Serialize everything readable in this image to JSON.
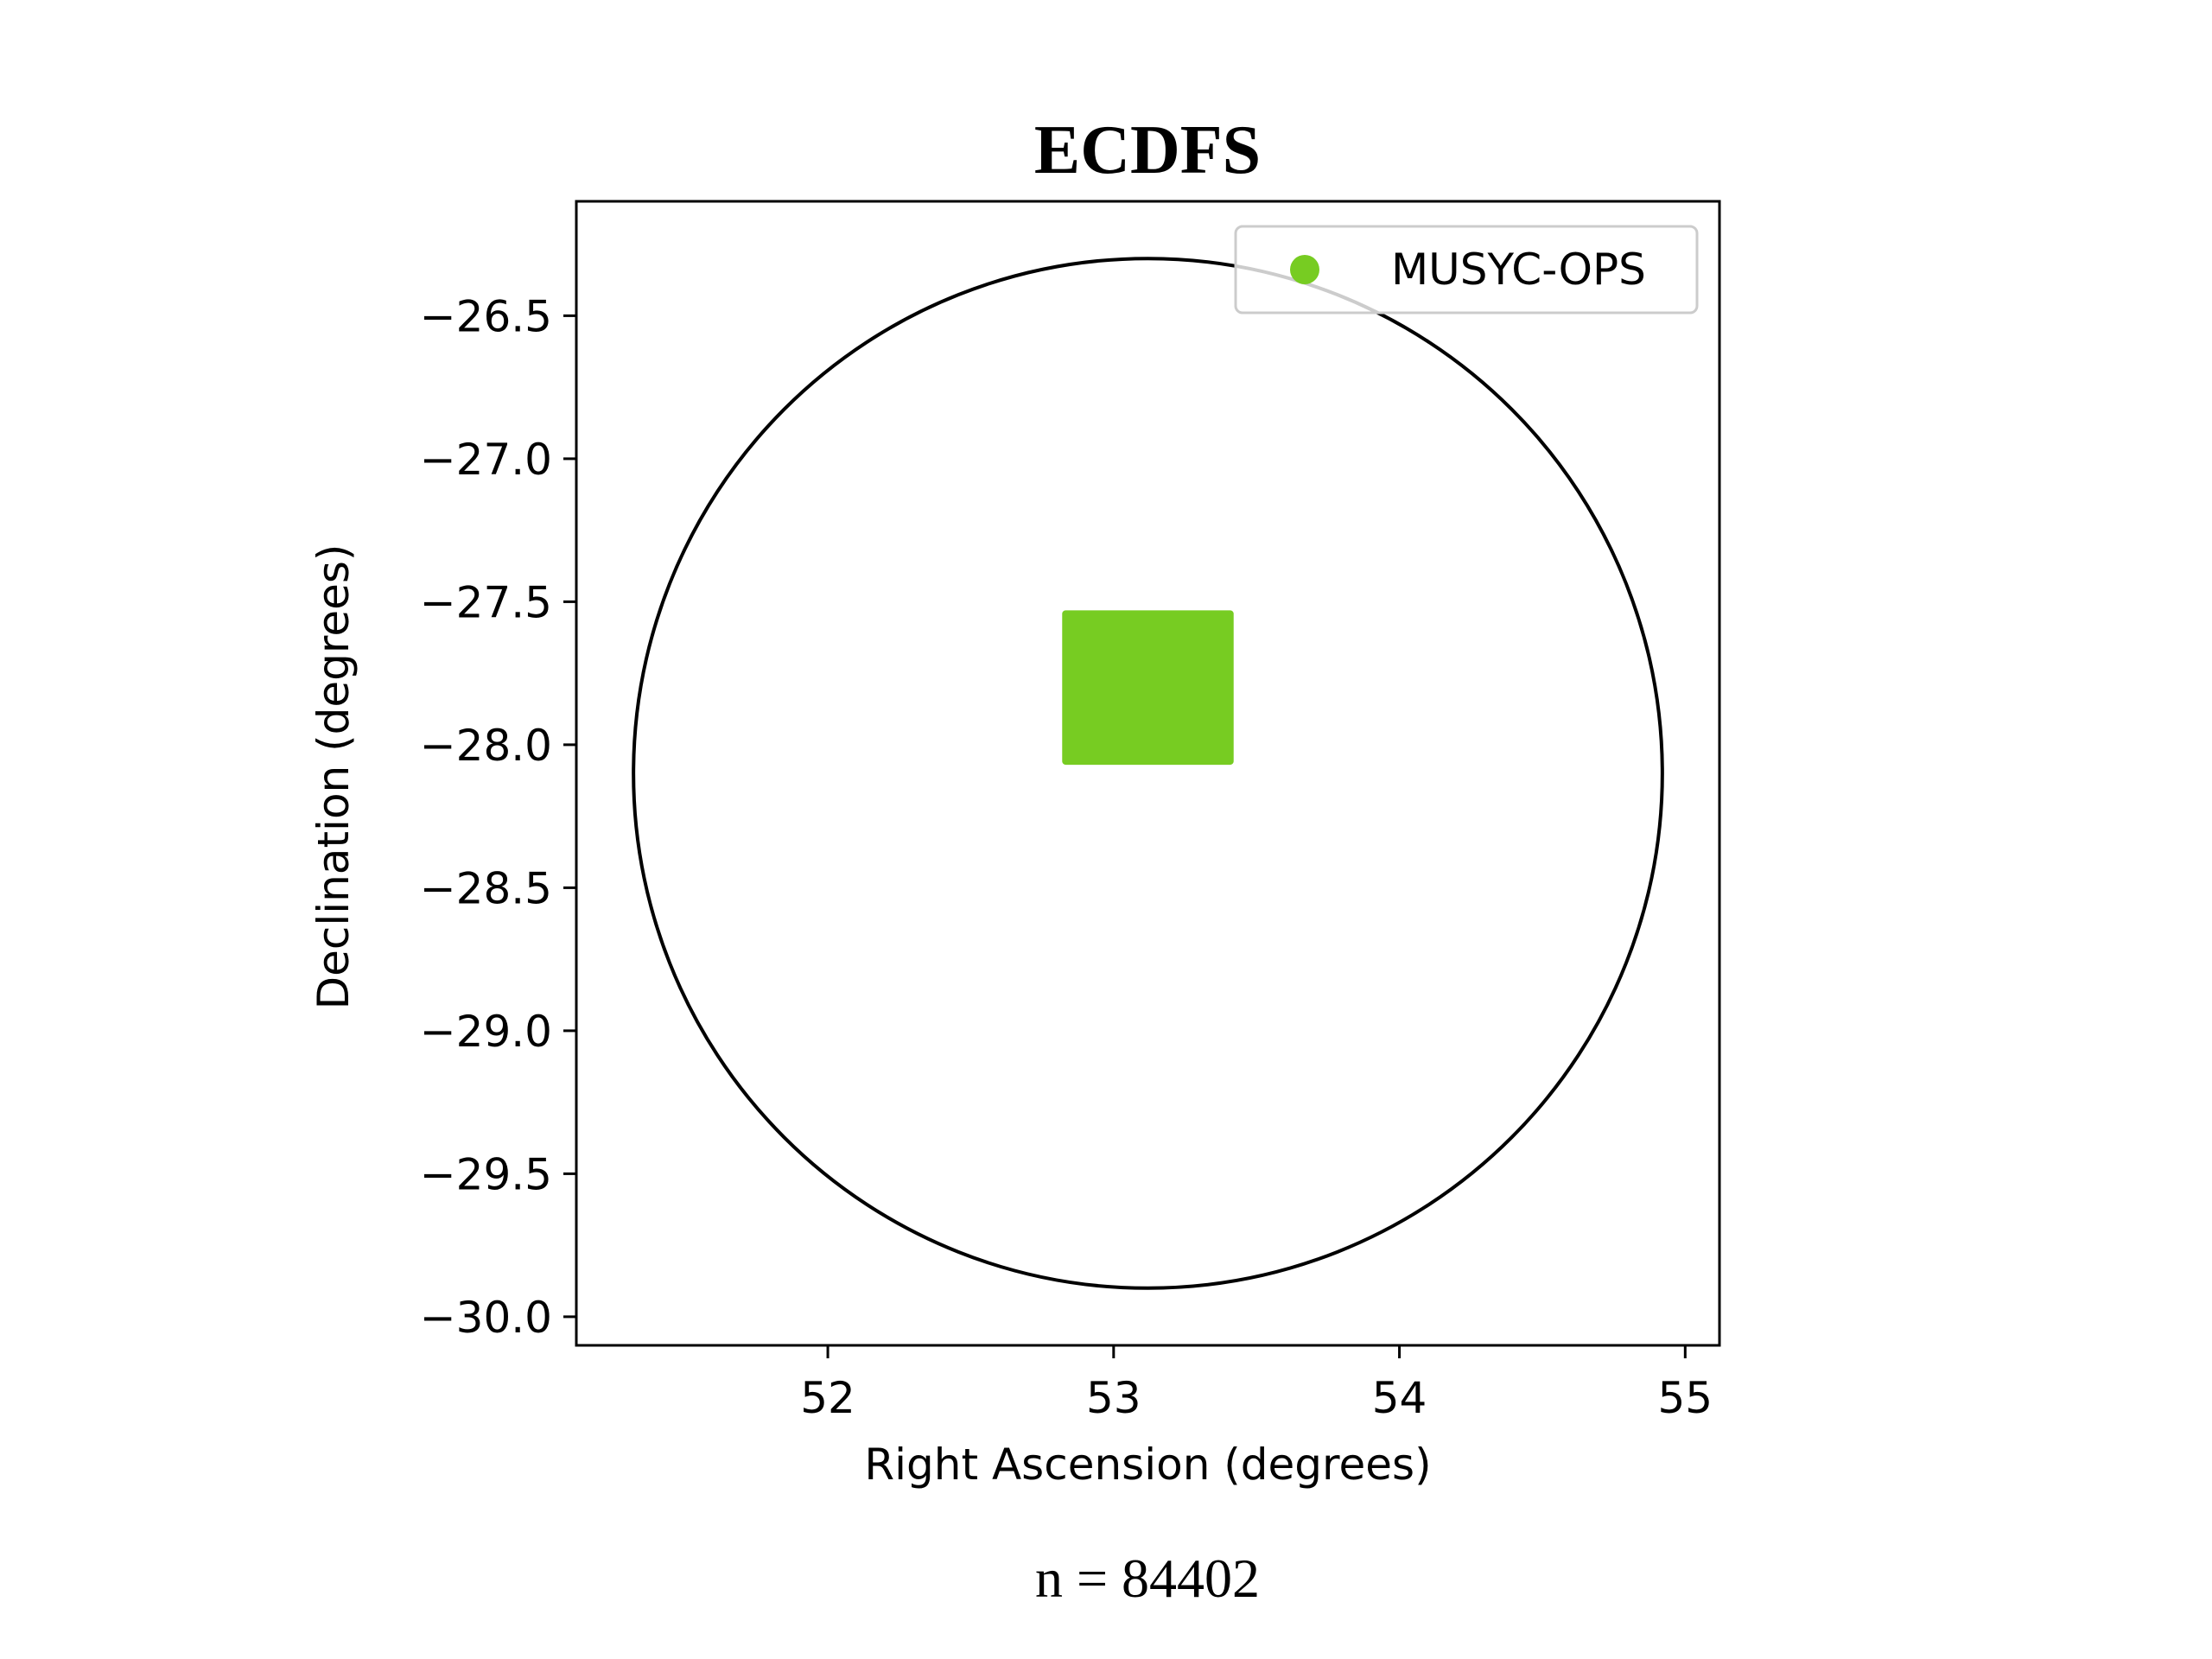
{
  "chart_data": {
    "type": "scatter",
    "title": "ECDFS",
    "xlabel": "Right Ascension (degrees)",
    "ylabel": "Declination (degrees)",
    "xlim": [
      51.12,
      55.12
    ],
    "ylim": [
      -30.1,
      -26.1
    ],
    "x_ticks": [
      52,
      53,
      54,
      55
    ],
    "x_tick_labels": [
      "52",
      "53",
      "54",
      "55"
    ],
    "y_ticks": [
      -26.5,
      -27.0,
      -27.5,
      -28.0,
      -28.5,
      -29.0,
      -29.5,
      -30.0
    ],
    "y_tick_labels": [
      "−26.5",
      "−27.0",
      "−27.5",
      "−28.0",
      "−28.5",
      "−29.0",
      "−29.5",
      "−30.0"
    ],
    "grid": false,
    "legend_position": "upper right",
    "series": [
      {
        "name": "MUSYC-OPS",
        "color": "#77cc22",
        "region": {
          "ra_min": 52.82,
          "ra_max": 53.42,
          "dec_min": -28.07,
          "dec_max": -27.53
        }
      }
    ],
    "circle": {
      "center_ra": 53.12,
      "center_dec": -28.1,
      "radius_deg": 1.8,
      "color": "#000000"
    },
    "footnote": "n = 84402"
  }
}
